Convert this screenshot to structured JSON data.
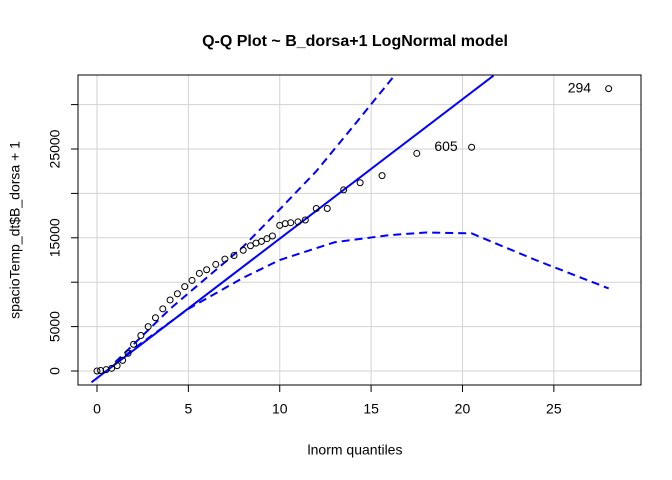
{
  "chart_data": {
    "type": "qq",
    "title": "Q-Q Plot ~ B_dorsa+1 LogNormal model",
    "x_label": "lnorm quantiles",
    "y_label": "spacioTemp_dt$B_dorsa + 1",
    "xlim": [
      -1.04,
      29.77
    ],
    "ylim": [
      -1577,
      33333
    ],
    "xticks": [
      0,
      5,
      10,
      15,
      20,
      25
    ],
    "yticks": [
      0,
      5000,
      15000,
      25000
    ],
    "ygrid": [
      0,
      5000,
      10000,
      15000,
      20000,
      25000,
      30000
    ],
    "grid": true,
    "points": {
      "color": "#000000",
      "x": [
        0,
        0.2,
        0.5,
        0.8,
        1.1,
        1.4,
        1.7,
        2,
        2.4,
        2.8,
        3.2,
        3.6,
        4,
        4.4,
        4.8,
        5.2,
        5.6,
        6,
        6.5,
        7,
        7.5,
        8,
        8.4,
        8.7,
        9,
        9.3,
        9.6,
        10,
        10.3,
        10.6,
        11,
        11.4,
        12,
        12.6,
        13.5,
        14.4,
        15.6,
        17.5,
        20.5,
        28
      ],
      "y": [
        0,
        50,
        150,
        300,
        600,
        1200,
        2000,
        3000,
        4000,
        5000,
        6000,
        7000,
        8000,
        8700,
        9500,
        10200,
        11000,
        11400,
        12000,
        12600,
        13000,
        13600,
        14100,
        14400,
        14600,
        14900,
        15200,
        16400,
        16600,
        16700,
        16800,
        17000,
        18300,
        18300,
        20400,
        21200,
        22000,
        24500,
        25200,
        31800
      ]
    },
    "series": [
      {
        "style": "solid",
        "color": "#0000ff",
        "x": [
          -0.3,
          21.7
        ],
        "values": [
          -1271,
          33269
        ]
      },
      {
        "style": "dashed",
        "color": "#0000ff",
        "x": [
          1,
          2,
          4,
          6,
          8,
          10,
          12,
          14,
          16.3
        ],
        "values": [
          1000,
          3000,
          7000,
          10500,
          14000,
          18200,
          22500,
          27500,
          33333
        ]
      },
      {
        "style": "dashed",
        "color": "#0000ff",
        "x": [
          1,
          2,
          3,
          5,
          8,
          10,
          13,
          16,
          18,
          20.5,
          24,
          28
        ],
        "values": [
          800,
          2500,
          4000,
          7000,
          10500,
          12500,
          14500,
          15300,
          15600,
          15500,
          12500,
          9300
        ]
      }
    ],
    "annotations": [
      {
        "text": "294",
        "x": 26.4,
        "y": 31800
      },
      {
        "text": "605",
        "x": 19.1,
        "y": 25200
      }
    ]
  }
}
